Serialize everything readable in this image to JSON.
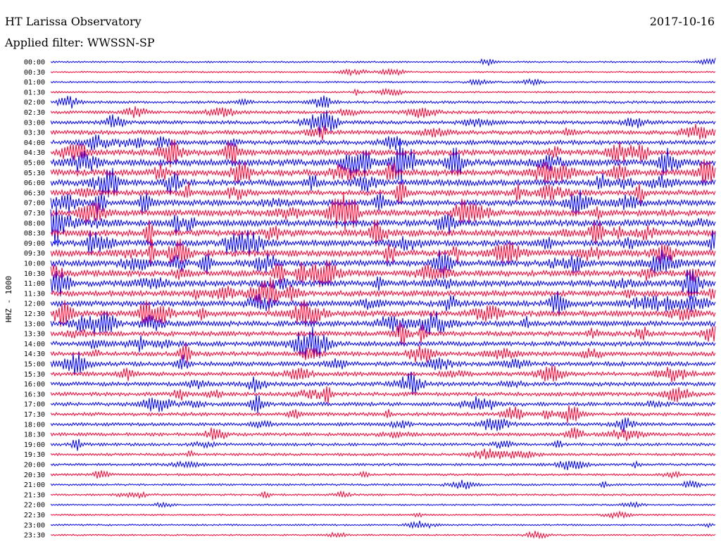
{
  "header": {
    "station": "HT Larissa Observatory",
    "date": "2017-10-16",
    "filter": "Applied filter: WWSSN-SP"
  },
  "chart_data": {
    "type": "line",
    "title": "HT Larissa Observatory",
    "subtitle": "Applied filter: WWSSN-SP",
    "ylabel": "HHZ - 1000",
    "trace_colors": [
      "#0000ff",
      "#ff0033"
    ],
    "grid": false,
    "rows": [
      {
        "label": "00:00",
        "activity": 0.15
      },
      {
        "label": "00:30",
        "activity": 0.12
      },
      {
        "label": "01:00",
        "activity": 0.15
      },
      {
        "label": "01:30",
        "activity": 0.15
      },
      {
        "label": "02:00",
        "activity": 0.3
      },
      {
        "label": "02:30",
        "activity": 0.35
      },
      {
        "label": "03:00",
        "activity": 0.45
      },
      {
        "label": "03:30",
        "activity": 0.55
      },
      {
        "label": "04:00",
        "activity": 0.6
      },
      {
        "label": "04:30",
        "activity": 0.8
      },
      {
        "label": "05:00",
        "activity": 0.95
      },
      {
        "label": "05:30",
        "activity": 0.9
      },
      {
        "label": "06:00",
        "activity": 0.85
      },
      {
        "label": "06:30",
        "activity": 0.8
      },
      {
        "label": "07:00",
        "activity": 0.85
      },
      {
        "label": "07:30",
        "activity": 0.85
      },
      {
        "label": "08:00",
        "activity": 0.9
      },
      {
        "label": "08:30",
        "activity": 0.9
      },
      {
        "label": "09:00",
        "activity": 0.85
      },
      {
        "label": "09:30",
        "activity": 0.9
      },
      {
        "label": "10:00",
        "activity": 0.9
      },
      {
        "label": "10:30",
        "activity": 0.85
      },
      {
        "label": "11:00",
        "activity": 0.85
      },
      {
        "label": "11:30",
        "activity": 0.8
      },
      {
        "label": "12:00",
        "activity": 0.8
      },
      {
        "label": "12:30",
        "activity": 0.8
      },
      {
        "label": "13:00",
        "activity": 0.75
      },
      {
        "label": "13:30",
        "activity": 0.65
      },
      {
        "label": "14:00",
        "activity": 0.65
      },
      {
        "label": "14:30",
        "activity": 0.6
      },
      {
        "label": "15:00",
        "activity": 0.6
      },
      {
        "label": "15:30",
        "activity": 0.55
      },
      {
        "label": "16:00",
        "activity": 0.55
      },
      {
        "label": "16:30",
        "activity": 0.5
      },
      {
        "label": "17:00",
        "activity": 0.5
      },
      {
        "label": "17:30",
        "activity": 0.45
      },
      {
        "label": "18:00",
        "activity": 0.4
      },
      {
        "label": "18:30",
        "activity": 0.4
      },
      {
        "label": "19:00",
        "activity": 0.35
      },
      {
        "label": "19:30",
        "activity": 0.3
      },
      {
        "label": "20:00",
        "activity": 0.3
      },
      {
        "label": "20:30",
        "activity": 0.25
      },
      {
        "label": "21:00",
        "activity": 0.2
      },
      {
        "label": "21:30",
        "activity": 0.2
      },
      {
        "label": "22:00",
        "activity": 0.15
      },
      {
        "label": "22:30",
        "activity": 0.15
      },
      {
        "label": "23:00",
        "activity": 0.15
      },
      {
        "label": "23:30",
        "activity": 0.12
      }
    ]
  }
}
